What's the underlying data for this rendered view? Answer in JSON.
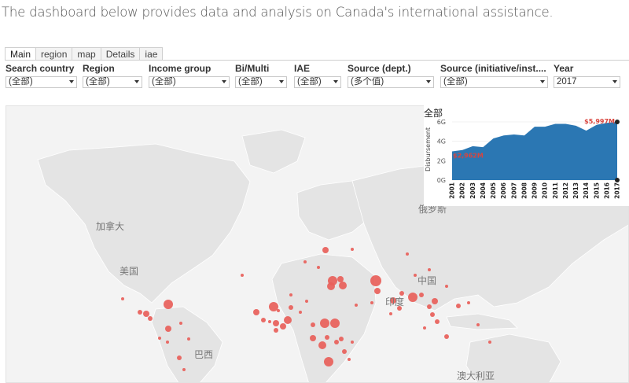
{
  "intro_text": "The dashboard below provides data and analysis on Canada's international assistance.",
  "tabs": [
    {
      "label": "Main",
      "active": true
    },
    {
      "label": "region",
      "active": false
    },
    {
      "label": "map",
      "active": false
    },
    {
      "label": "Details",
      "active": false
    },
    {
      "label": "iae",
      "active": false
    }
  ],
  "filters": [
    {
      "label": "Search country",
      "value": "(全部)"
    },
    {
      "label": "Region",
      "value": "(全部)"
    },
    {
      "label": "Income group",
      "value": "(全部)"
    },
    {
      "label": "Bi/Multi",
      "value": "(全部)"
    },
    {
      "label": "IAE",
      "value": "(全部)"
    },
    {
      "label": "Source (dept.)",
      "value": "(多个值)"
    },
    {
      "label": "Source (initiative/inst....",
      "value": "(全部)"
    },
    {
      "label": "Year",
      "value": "2017"
    }
  ],
  "map": {
    "labels": {
      "canada": "加拿大",
      "usa": "美国",
      "brazil": "巴西",
      "russia": "俄罗斯",
      "china": "中国",
      "india": "印度",
      "australia": "澳大利亚"
    },
    "bubble_color": "#e8605a",
    "land_color": "#e4e4e4"
  },
  "chart_data": {
    "type": "area",
    "title": "全部",
    "ylabel": "Disbursement",
    "categories": [
      "2001",
      "2002",
      "2003",
      "2004",
      "2005",
      "2006",
      "2007",
      "2008",
      "2009",
      "2010",
      "2011",
      "2012",
      "2013",
      "2014",
      "2015",
      "2016",
      "2017"
    ],
    "values": [
      2.962,
      3.1,
      3.5,
      3.4,
      4.3,
      4.6,
      4.7,
      4.6,
      5.5,
      5.5,
      5.8,
      5.8,
      5.6,
      5.1,
      5.7,
      5.9,
      5.997
    ],
    "yticks": [
      "0G",
      "2G",
      "4G",
      "6G"
    ],
    "ylim": [
      0,
      6
    ],
    "first_label": "$2,962M",
    "last_label": "$5,997M",
    "fill_color": "#2b77b3",
    "label_color": "#d9453e"
  }
}
